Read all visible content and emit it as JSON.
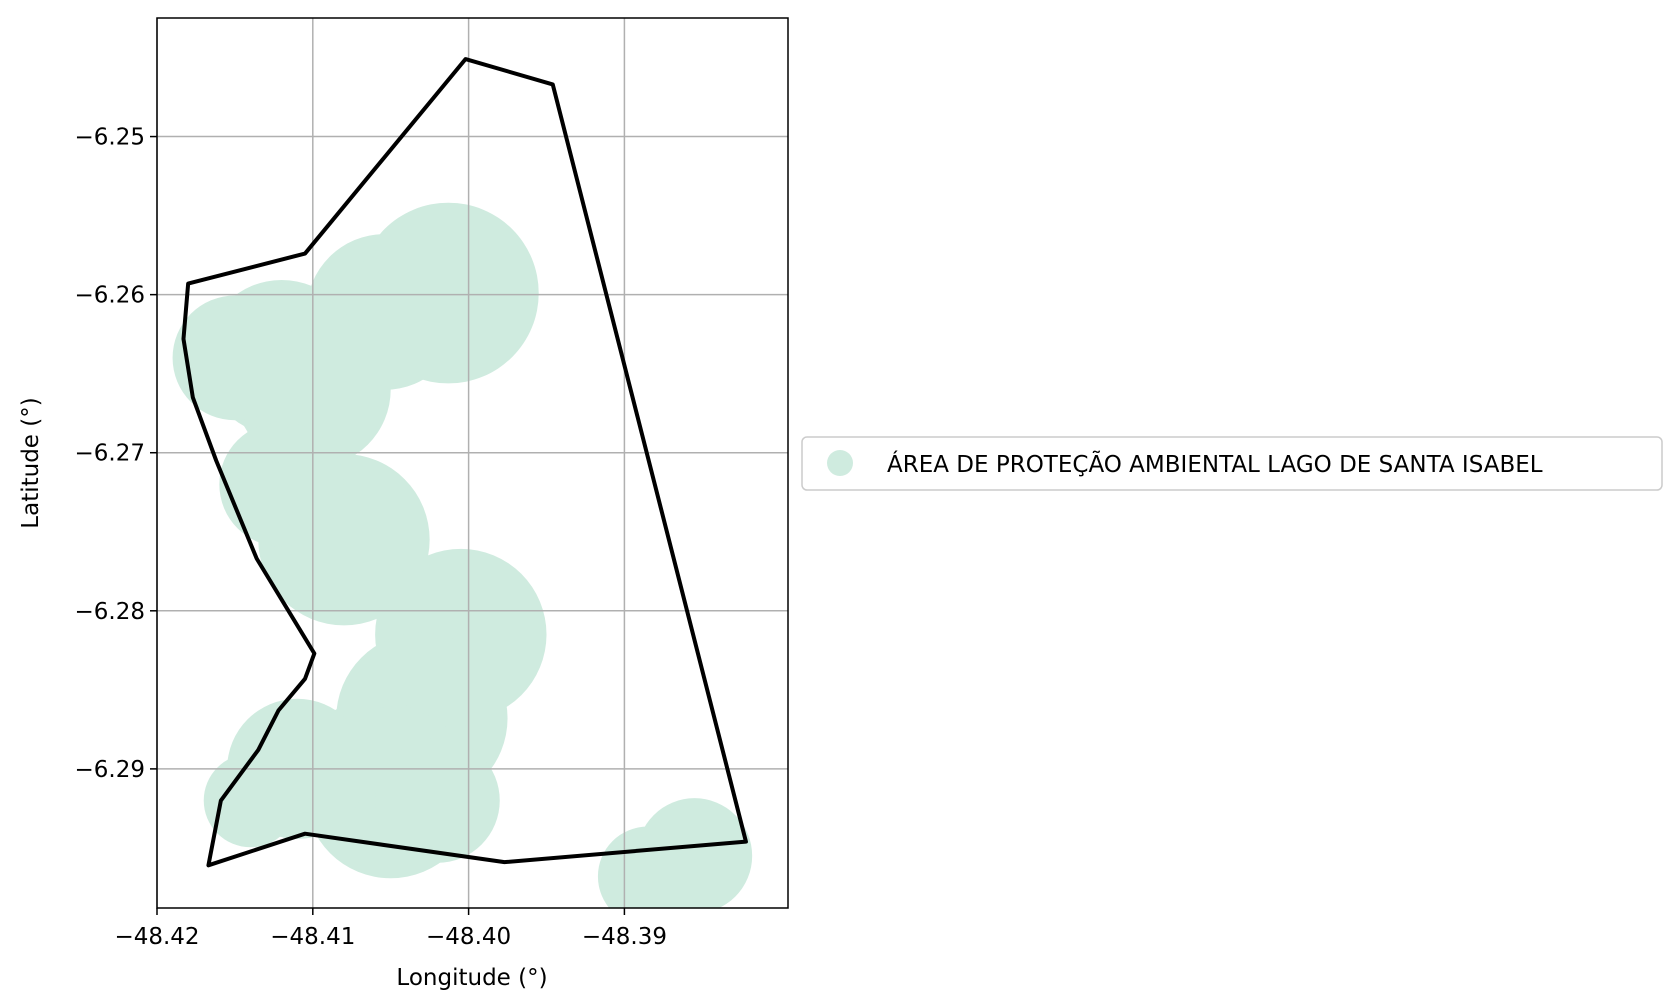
{
  "chart_data": {
    "type": "map",
    "xlabel": "Longitude (°)",
    "ylabel": "Latitude (°)",
    "xlim": [
      -48.42,
      -48.3795
    ],
    "ylim": [
      -6.2988,
      -6.2425
    ],
    "x_ticks": [
      -48.42,
      -48.41,
      -48.4,
      -48.39
    ],
    "y_ticks": [
      -6.25,
      -6.26,
      -6.27,
      -6.28,
      -6.29
    ],
    "x_tick_labels": [
      "−48.42",
      "−48.41",
      "−48.40",
      "−48.39"
    ],
    "y_tick_labels": [
      "−6.25",
      "−6.26",
      "−6.27",
      "−6.28",
      "−6.29"
    ],
    "grid": true,
    "legend": {
      "placement": "right",
      "entries": [
        {
          "label": "ÁREA DE PROTEÇÃO AMBIENTAL LAGO DE SANTA ISABEL",
          "color": "#cfebdf",
          "marker": "circle"
        }
      ]
    },
    "boundary": {
      "color": "#000000",
      "points": [
        [
          -48.4002,
          -6.2451
        ],
        [
          -48.3946,
          -6.2467
        ],
        [
          -48.3822,
          -6.2946
        ],
        [
          -48.3977,
          -6.2959
        ],
        [
          -48.4105,
          -6.2941
        ],
        [
          -48.4167,
          -6.2961
        ],
        [
          -48.4159,
          -6.292
        ],
        [
          -48.4135,
          -6.2888
        ],
        [
          -48.4122,
          -6.2863
        ],
        [
          -48.4105,
          -6.2843
        ],
        [
          -48.4099,
          -6.2827
        ],
        [
          -48.4136,
          -6.2767
        ],
        [
          -48.4162,
          -6.2705
        ],
        [
          -48.4177,
          -6.2665
        ],
        [
          -48.4183,
          -6.2628
        ],
        [
          -48.418,
          -6.2593
        ],
        [
          -48.4105,
          -6.2574
        ]
      ]
    },
    "coverage": {
      "color": "#cfebdf",
      "circles": [
        {
          "lon": -48.4054,
          "lat": -6.2611,
          "r": 0.005
        },
        {
          "lon": -48.4013,
          "lat": -6.2599,
          "r": 0.0058
        },
        {
          "lon": -48.412,
          "lat": -6.264,
          "r": 0.005
        },
        {
          "lon": -48.41,
          "lat": -6.266,
          "r": 0.005
        },
        {
          "lon": -48.415,
          "lat": -6.264,
          "r": 0.004
        },
        {
          "lon": -48.408,
          "lat": -6.2755,
          "r": 0.0055
        },
        {
          "lon": -48.412,
          "lat": -6.272,
          "r": 0.004
        },
        {
          "lon": -48.4005,
          "lat": -6.2815,
          "r": 0.0055
        },
        {
          "lon": -48.403,
          "lat": -6.2868,
          "r": 0.0055
        },
        {
          "lon": -48.406,
          "lat": -6.2905,
          "r": 0.005
        },
        {
          "lon": -48.405,
          "lat": -6.2915,
          "r": 0.0055
        },
        {
          "lon": -48.411,
          "lat": -6.29,
          "r": 0.0045
        },
        {
          "lon": -48.402,
          "lat": -6.292,
          "r": 0.004
        },
        {
          "lon": -48.414,
          "lat": -6.292,
          "r": 0.003
        },
        {
          "lon": -48.3855,
          "lat": -6.2955,
          "r": 0.0037
        },
        {
          "lon": -48.3885,
          "lat": -6.2968,
          "r": 0.0032
        }
      ]
    }
  }
}
